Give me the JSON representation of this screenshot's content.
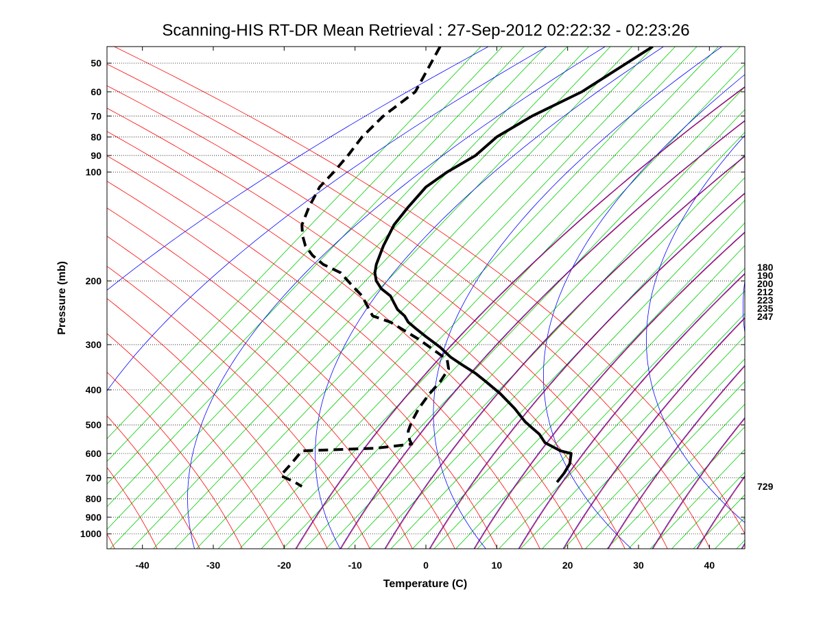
{
  "chart_data": {
    "type": "line",
    "title": "Scanning-HIS RT-DR Mean Retrieval : 27-Sep-2012 02:22:32 - 02:23:26",
    "xlabel": "Temperature (C)",
    "ylabel": "Pressure (mb)",
    "xlim": [
      -45,
      45
    ],
    "ylim": [
      1100,
      45
    ],
    "y_scale": "log",
    "x_ticks": [
      "-40",
      "-30",
      "-20",
      "-10",
      "0",
      "10",
      "20",
      "30",
      "40"
    ],
    "x_tick_values": [
      -40,
      -30,
      -20,
      -10,
      0,
      10,
      20,
      30,
      40
    ],
    "y_ticks": [
      "50",
      "60",
      "70",
      "80",
      "90",
      "100",
      "200",
      "300",
      "400",
      "500",
      "600",
      "700",
      "800",
      "900",
      "1000"
    ],
    "y_tick_values": [
      50,
      60,
      70,
      80,
      90,
      100,
      200,
      300,
      400,
      500,
      600,
      700,
      800,
      900,
      1000
    ],
    "pressure_gridlines": true,
    "right_labels": [
      "180",
      "190",
      "200",
      "212",
      "223",
      "235",
      "247",
      "729"
    ],
    "colors": {
      "dry_adiabat_blue": "#0000ff",
      "moist_adiabat_red": "#ff0000",
      "mixing_ratio_green": "#00cc00",
      "profile": "#000000",
      "grid": "#000000"
    },
    "series": [
      {
        "style": "solid",
        "x": [
          32,
          22,
          15,
          10,
          7,
          3,
          0,
          -2.5,
          -4.5,
          -6,
          -7,
          -7.2,
          -7,
          -6.3,
          -5,
          -4.5,
          -4,
          -3,
          -2.5,
          -1.5,
          0,
          2,
          3.5,
          5,
          7,
          8.5,
          10.5,
          12.5,
          14,
          15,
          16,
          16.8,
          19,
          20.5,
          20.3,
          19.5,
          18.5
        ],
        "y": [
          45,
          60,
          70,
          80,
          90,
          100,
          110,
          125,
          140,
          160,
          180,
          190,
          200,
          210,
          220,
          230,
          240,
          250,
          260,
          270,
          285,
          305,
          325,
          340,
          360,
          380,
          410,
          450,
          490,
          510,
          530,
          560,
          590,
          600,
          640,
          680,
          720
        ]
      },
      {
        "style": "dashed",
        "x": [
          2,
          -1.5,
          -6,
          -9,
          -11,
          -13,
          -15,
          -16.5,
          -17.5,
          -17.4,
          -17,
          -16,
          -14.5,
          -12,
          -11,
          -10,
          -9,
          -8.5,
          -8,
          -7.5,
          -5,
          -1,
          3,
          3.2,
          2,
          0.5,
          -1,
          -2,
          -2.5,
          -2.3,
          -2,
          -7,
          -17.5,
          -19,
          -20.5,
          -18.5,
          -17.5
        ],
        "y": [
          45,
          60,
          70,
          80,
          90,
          100,
          110,
          125,
          140,
          150,
          160,
          170,
          180,
          190,
          200,
          210,
          220,
          230,
          240,
          250,
          260,
          290,
          330,
          350,
          380,
          410,
          450,
          490,
          520,
          550,
          565,
          580,
          590,
          640,
          690,
          720,
          740
        ]
      }
    ]
  }
}
